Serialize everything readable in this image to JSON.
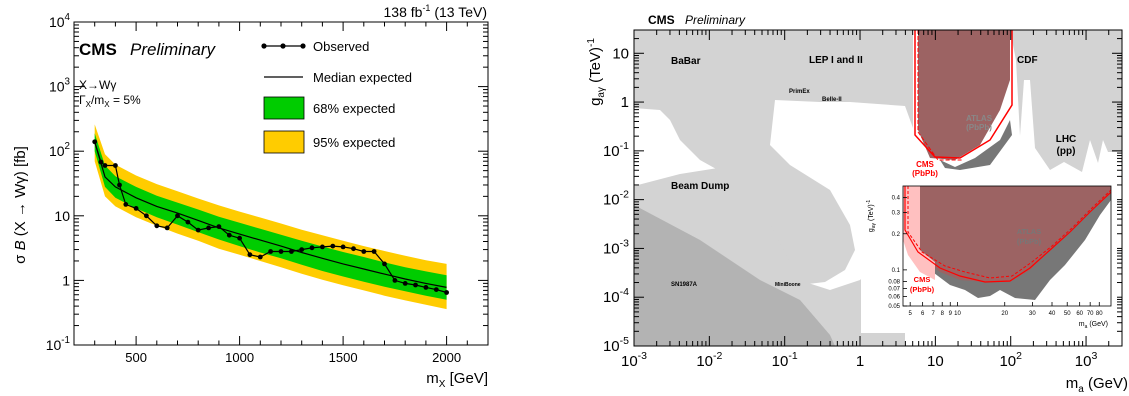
{
  "left_panel": {
    "header": {
      "lumi_value": "138 fb",
      "lumi_exp": "-1",
      "lumi_tail": " (13 TeV)"
    },
    "cms_label": "CMS",
    "preliminary_label": "Preliminary",
    "annotation_line1": "X→Wγ",
    "annotation_line2_a": "Γ",
    "annotation_line2_b": "X",
    "annotation_line2_c": "/m",
    "annotation_line2_d": "X",
    "annotation_line2_e": " = 5%",
    "ylabel": {
      "a": "σ ",
      "b": "B",
      "c": " (X → Wγ) [fb]"
    },
    "xlabel": {
      "a": "m",
      "b": "X",
      "c": " [GeV]"
    },
    "colors": {
      "band68": "#00cc00",
      "band95": "#ffcc00",
      "observed": "#000000"
    }
  },
  "right_panel": {
    "cms_label": "CMS",
    "preliminary_label": "Preliminary",
    "ylabel": {
      "a": "g",
      "b": "aγ",
      "c": " (TeV)",
      "d": "-1"
    },
    "xlabel": {
      "a": "m",
      "b": "a",
      "c": " (GeV)"
    },
    "region_labels": [
      "BaBar",
      "LEP I and II",
      "CDF",
      "PrimEx",
      "Belle-II",
      "ATLAS",
      "(PbPb)",
      "LHC",
      "(pp)",
      "CMS",
      "(PbPb)",
      "Beam Dump",
      "SN1987A",
      "MiniBoone"
    ],
    "inset": {
      "ylabel": {
        "a": "g",
        "b": "aγ",
        "c": " (TeV)",
        "d": "-1"
      },
      "xlabel": {
        "a": "m",
        "b": "a",
        "c": " (GeV)"
      },
      "labels": [
        "ATLAS",
        "(PbPb)",
        "CMS",
        "(PbPb)"
      ]
    },
    "colors": {
      "excluded_light": "#d3d3d3",
      "excluded_mid": "#b0b0b0",
      "atlas": "#9c6363",
      "cms": "#ff0000",
      "inset_dark": "#777777"
    }
  },
  "chart_data": [
    {
      "type": "line",
      "title": "",
      "xlabel": "m_X [GeV]",
      "ylabel": "σ B (X → Wγ) [fb]",
      "xlim": [
        200,
        2200
      ],
      "ylim": [
        0.1,
        10000
      ],
      "yscale": "log",
      "grid": false,
      "legend_position": "top-right",
      "x_ticks": [
        "500",
        "1000",
        "1500",
        "2000"
      ],
      "y_ticks": [
        "10^{-1}",
        "1",
        "10",
        "10^{2}",
        "10^{3}",
        "10^{4}"
      ],
      "legend": [
        "Observed",
        "Median expected",
        "68% expected",
        "95% expected"
      ],
      "series": [
        {
          "name": "Observed",
          "x": [
            300,
            330,
            350,
            400,
            420,
            450,
            500,
            550,
            600,
            650,
            700,
            750,
            800,
            850,
            900,
            950,
            1000,
            1050,
            1100,
            1150,
            1200,
            1250,
            1300,
            1350,
            1400,
            1450,
            1500,
            1550,
            1600,
            1650,
            1700,
            1750,
            1800,
            1850,
            1900,
            1950,
            2000
          ],
          "values": [
            140,
            68,
            60,
            60,
            30,
            15,
            13,
            10,
            7,
            6.5,
            10,
            8,
            6,
            6.5,
            6.8,
            5,
            4.5,
            2.5,
            2.3,
            2.8,
            2.8,
            2.8,
            3,
            3.2,
            3.3,
            3.4,
            3.3,
            3.1,
            2.8,
            2.8,
            1.8,
            1.0,
            0.9,
            0.85,
            0.78,
            0.72,
            0.65
          ]
        },
        {
          "name": "Median expected",
          "x": [
            300,
            350,
            400,
            500,
            600,
            700,
            800,
            900,
            1000,
            1100,
            1200,
            1300,
            1400,
            1500,
            1600,
            1700,
            1800,
            1900,
            2000
          ],
          "values": [
            140,
            40,
            28,
            19,
            14,
            11,
            8.5,
            6.5,
            5.2,
            4.2,
            3.4,
            2.7,
            2.2,
            1.8,
            1.5,
            1.25,
            1.05,
            0.9,
            0.78
          ]
        },
        {
          "name": "68% expected",
          "x": [
            300,
            350,
            400,
            500,
            600,
            700,
            800,
            900,
            1000,
            1100,
            1200,
            1300,
            1400,
            1500,
            1600,
            1700,
            1800,
            1900,
            2000
          ],
          "low": [
            100,
            28,
            19,
            13,
            9.5,
            7.3,
            5.6,
            4.3,
            3.4,
            2.7,
            2.2,
            1.75,
            1.4,
            1.15,
            0.95,
            0.8,
            0.68,
            0.58,
            0.5
          ],
          "high": [
            190,
            60,
            41,
            28,
            20.5,
            16,
            12.5,
            9.7,
            7.8,
            6.3,
            5.1,
            4.1,
            3.35,
            2.75,
            2.3,
            1.9,
            1.6,
            1.38,
            1.2
          ]
        },
        {
          "name": "95% expected",
          "x": [
            300,
            350,
            400,
            500,
            600,
            700,
            800,
            900,
            1000,
            1100,
            1200,
            1300,
            1400,
            1500,
            1600,
            1700,
            1800,
            1900,
            2000
          ],
          "low": [
            70,
            20,
            14,
            9.5,
            7,
            5.3,
            4.1,
            3.1,
            2.5,
            2.0,
            1.6,
            1.27,
            1.02,
            0.84,
            0.7,
            0.58,
            0.49,
            0.42,
            0.36
          ],
          "high": [
            260,
            90,
            62,
            42,
            31,
            24,
            18.5,
            14.5,
            11.6,
            9.4,
            7.6,
            6.1,
            5.0,
            4.1,
            3.4,
            2.85,
            2.4,
            2.05,
            1.8
          ]
        }
      ]
    },
    {
      "type": "area",
      "title": "",
      "xlabel": "m_a (GeV)",
      "ylabel": "g_aγ (TeV)^-1",
      "xlim": [
        0.001,
        3000
      ],
      "ylim": [
        1e-05,
        30
      ],
      "xscale": "log",
      "yscale": "log",
      "grid": false,
      "x_ticks": [
        "10^{-3}",
        "10^{-2}",
        "10^{-1}",
        "1",
        "10",
        "10^{2}",
        "10^{3}"
      ],
      "y_ticks": [
        "10^{-5}",
        "10^{-4}",
        "10^{-3}",
        "10^{-2}",
        "10^{-1}",
        "1",
        "10"
      ],
      "inset": {
        "type": "area",
        "xscale": "log",
        "yscale": "log",
        "xlim": [
          4.5,
          95
        ],
        "ylim": [
          0.05,
          0.5
        ],
        "x_ticks": [
          "5",
          "6",
          "7",
          "8",
          "9",
          "10",
          "20",
          "30",
          "40",
          "50",
          "60",
          "70",
          "80"
        ],
        "y_ticks": [
          "0.05",
          "0.06",
          "0.07",
          "0.08",
          "0.1",
          "0.2",
          "0.3",
          "0.4"
        ]
      }
    }
  ]
}
